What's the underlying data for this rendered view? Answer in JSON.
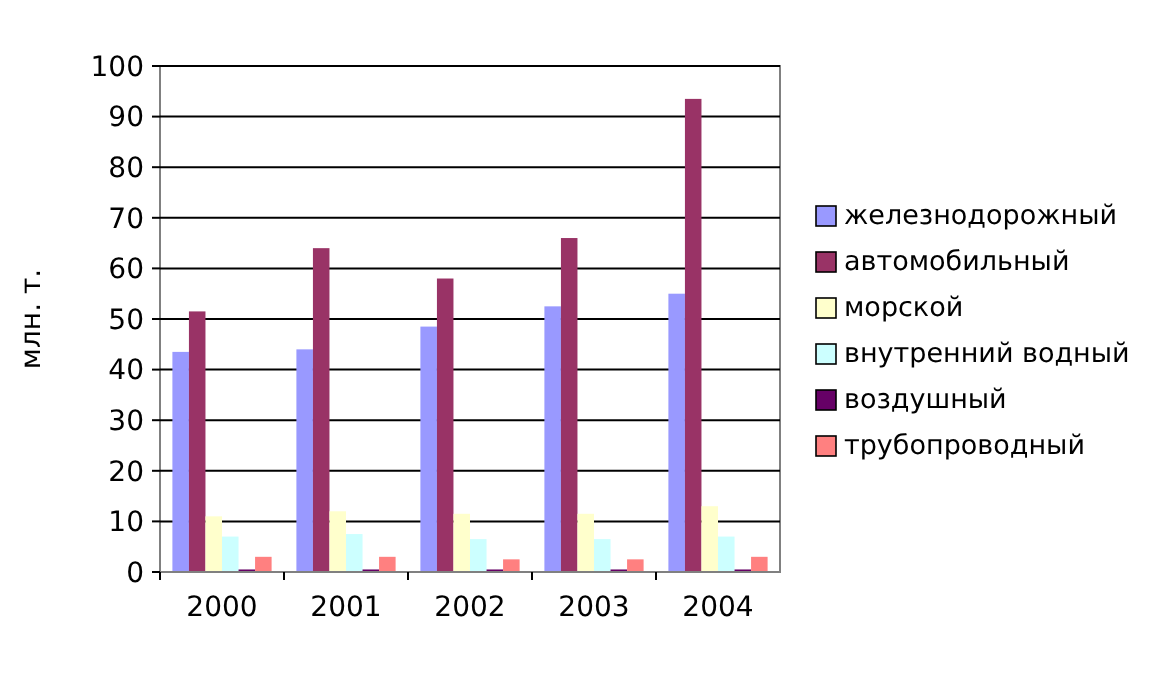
{
  "chart_data": {
    "type": "bar",
    "ylabel": "млн. т.",
    "categories": [
      "2000",
      "2001",
      "2002",
      "2003",
      "2004"
    ],
    "series": [
      {
        "name": "железнодорожный",
        "color": "#9999ff",
        "values": [
          43.5,
          44,
          48.5,
          52.5,
          55
        ]
      },
      {
        "name": "автомобильный",
        "color": "#993366",
        "values": [
          51.5,
          64,
          58,
          66,
          93.5
        ]
      },
      {
        "name": "морской",
        "color": "#ffffcc",
        "values": [
          11,
          12,
          11.5,
          11.5,
          13
        ]
      },
      {
        "name": "внутренний водный",
        "color": "#ccffff",
        "values": [
          7,
          7.5,
          6.5,
          6.5,
          7
        ]
      },
      {
        "name": "воздушный",
        "color": "#660066",
        "values": [
          0.5,
          0.5,
          0.5,
          0.5,
          0.5
        ]
      },
      {
        "name": "трубопроводный",
        "color": "#ff8080",
        "values": [
          3,
          3,
          2.5,
          2.5,
          3
        ]
      }
    ],
    "ylim": [
      0,
      100
    ],
    "yticks": [
      0,
      10,
      20,
      30,
      40,
      50,
      60,
      70,
      80,
      90,
      100
    ],
    "grid": "y",
    "legend": "right"
  }
}
